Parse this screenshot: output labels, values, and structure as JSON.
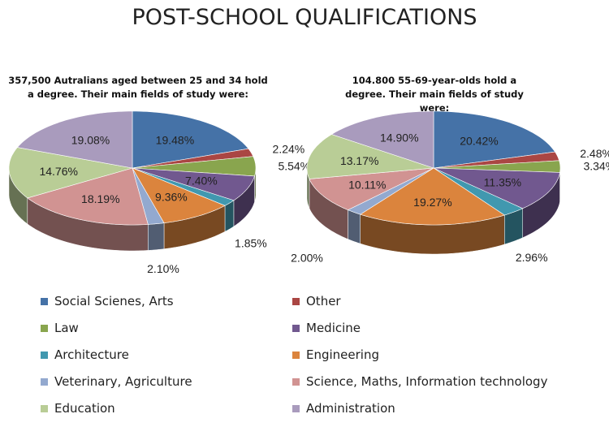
{
  "title": "POST-SCHOOL QUALIFICATIONS",
  "chart_data": [
    {
      "type": "pie",
      "title": "357,500 Autralians aged between 25 and 34 hold a degree. Their main fields of study were:",
      "categories": [
        "Social Scienes, Arts",
        "Other",
        "Law",
        "Medicine",
        "Architecture",
        "Engineering",
        "Veterinary, Agriculture",
        "Science, Maths, Information technology",
        "Education",
        "Administration"
      ],
      "values": [
        19.48,
        2.24,
        5.54,
        7.4,
        1.85,
        9.36,
        2.1,
        18.19,
        14.76,
        19.08
      ],
      "labels": [
        "19.48%",
        "2.24%",
        "5.54%",
        "7.40%",
        "1.85%",
        "9.36%",
        "2.10%",
        "18.19%",
        "14.76%",
        "19.08%"
      ]
    },
    {
      "type": "pie",
      "title": "104.800 55-69-year-olds hold a degree. Their main fields of study were:",
      "categories": [
        "Social Scienes, Arts",
        "Other",
        "Law",
        "Medicine",
        "Architecture",
        "Engineering",
        "Veterinary, Agriculture",
        "Science, Maths, Information technology",
        "Education",
        "Administration"
      ],
      "values": [
        20.42,
        2.48,
        3.34,
        11.35,
        2.96,
        19.27,
        2.0,
        10.11,
        13.17,
        14.9
      ],
      "labels": [
        "20.42%",
        "2.48%",
        "3.34%",
        "11.35%",
        "2.96%",
        "19.27%",
        "2.00%",
        "10.11%",
        "13.17%",
        "14.90%"
      ]
    }
  ],
  "legend": [
    "Social Scienes, Arts",
    "Other",
    "Law",
    "Medicine",
    "Architecture",
    "Engineering",
    "Veterinary, Agriculture",
    "Science, Maths, Information technology",
    "Education",
    "Administration"
  ],
  "colors": [
    "#4572a7",
    "#aa4643",
    "#89a54e",
    "#71588f",
    "#4198af",
    "#db843d",
    "#93a9cf",
    "#d19392",
    "#b9cd96",
    "#a99bbd"
  ]
}
